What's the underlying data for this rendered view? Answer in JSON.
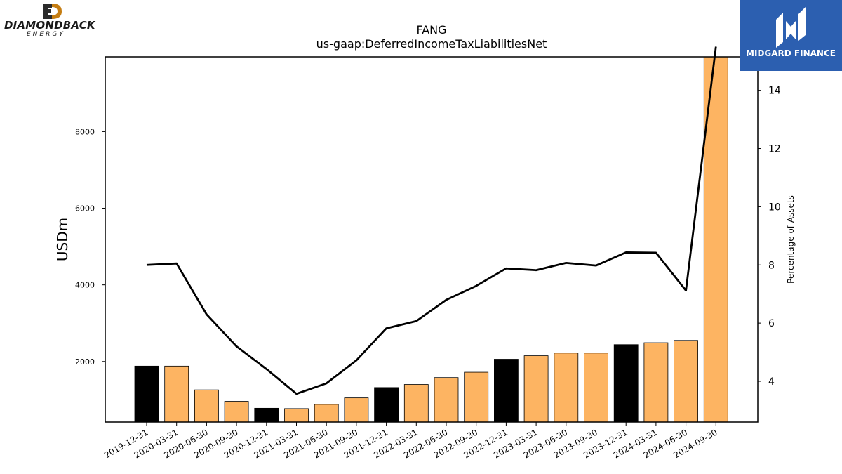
{
  "chart_data": {
    "type": "bar",
    "title": "FANG",
    "subtitle": "us-gaap:DeferredIncomeTaxLiabilitiesNet",
    "ylabel": "USDm",
    "y2label": "Percentage of Assets",
    "categories": [
      "2019-12-31",
      "2020-03-31",
      "2020-06-30",
      "2020-09-30",
      "2020-12-31",
      "2021-03-31",
      "2021-06-30",
      "2021-09-30",
      "2021-12-31",
      "2022-03-31",
      "2022-06-30",
      "2022-09-30",
      "2022-12-31",
      "2023-03-31",
      "2023-06-30",
      "2023-09-30",
      "2023-12-31",
      "2024-03-31",
      "2024-06-30",
      "2024-09-30"
    ],
    "series": [
      {
        "kind": "bar",
        "axis": "left",
        "values": [
          1880,
          1880,
          1260,
          960,
          780,
          770,
          880,
          1050,
          1320,
          1400,
          1580,
          1720,
          2060,
          2150,
          2220,
          2220,
          2440,
          2490,
          2550,
          10200
        ],
        "colors": [
          "#000000",
          "#fdb462",
          "#fdb462",
          "#fdb462",
          "#000000",
          "#fdb462",
          "#fdb462",
          "#fdb462",
          "#000000",
          "#fdb462",
          "#fdb462",
          "#fdb462",
          "#000000",
          "#fdb462",
          "#fdb462",
          "#fdb462",
          "#000000",
          "#fdb462",
          "#fdb462",
          "#fdb462"
        ]
      },
      {
        "kind": "line",
        "axis": "right",
        "color": "#000000",
        "values": [
          8.0,
          8.05,
          6.3,
          5.2,
          4.42,
          3.57,
          3.93,
          4.72,
          5.82,
          6.07,
          6.8,
          7.28,
          7.88,
          7.82,
          8.07,
          7.98,
          8.43,
          8.42,
          7.12,
          15.5
        ]
      }
    ],
    "ylim": [
      420,
      9950
    ],
    "y2lim": [
      2.6,
      15.15
    ],
    "yticks": [
      2000,
      4000,
      6000,
      8000
    ],
    "y2ticks": [
      4,
      6,
      8,
      10,
      12,
      14
    ],
    "grid": false
  },
  "logos": {
    "left": {
      "name": "DIAMONDBACK",
      "sub": "ENERGY",
      "mark_color": "#c57d12"
    },
    "right": {
      "name": "MIDGARD FINANCE",
      "bg_color": "#2c5fb0"
    }
  }
}
